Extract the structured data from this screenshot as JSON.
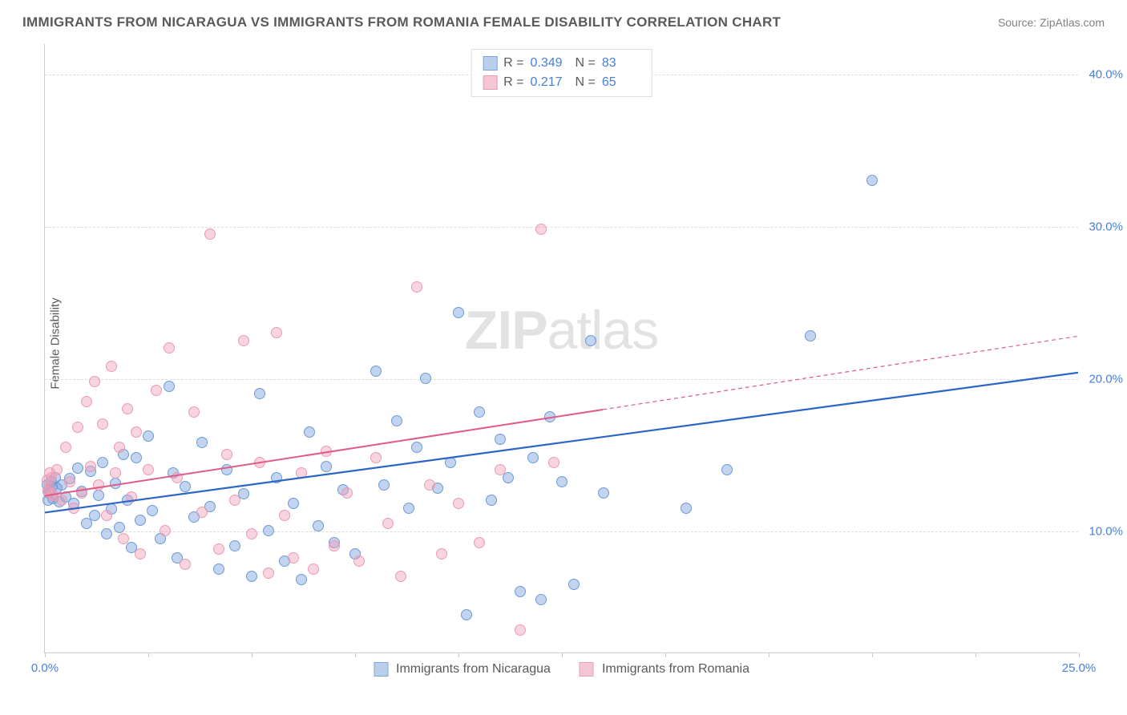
{
  "title": "IMMIGRANTS FROM NICARAGUA VS IMMIGRANTS FROM ROMANIA FEMALE DISABILITY CORRELATION CHART",
  "source": "Source: ZipAtlas.com",
  "ylabel": "Female Disability",
  "watermark_bold": "ZIP",
  "watermark_rest": "atlas",
  "chart": {
    "type": "scatter",
    "xlim": [
      0,
      25
    ],
    "ylim": [
      2,
      42
    ],
    "x_ticks": [
      0,
      2.5,
      5,
      7.5,
      10,
      12.5,
      15,
      17.5,
      20,
      22.5,
      25
    ],
    "x_tick_labels": {
      "0": "0.0%",
      "25": "25.0%"
    },
    "y_gridlines": [
      10,
      20,
      30,
      40
    ],
    "y_tick_labels": {
      "10": "10.0%",
      "20": "20.0%",
      "30": "30.0%",
      "40": "40.0%"
    },
    "background_color": "#ffffff",
    "grid_color": "#dddddd",
    "axis_color": "#cccccc",
    "marker_radius": 7,
    "marker_stroke_width": 1.3,
    "series": [
      {
        "name": "Immigrants from Nicaragua",
        "fill_color": "rgba(120,160,220,0.45)",
        "stroke_color": "#6d9ad6",
        "swatch_fill": "#b9cfec",
        "swatch_border": "#7ea4d8",
        "trend_color": "#2b66c4",
        "trend_width": 2.2,
        "trend_dash": "none",
        "trend_y_at_xmin": 11.2,
        "trend_y_at_xmax": 20.4,
        "stats": {
          "R_label": "R =",
          "R": "0.349",
          "N_label": "N =",
          "N": "83"
        },
        "points": [
          [
            0.1,
            12.5
          ],
          [
            0.15,
            13.2
          ],
          [
            0.2,
            12.1
          ],
          [
            0.25,
            13.5
          ],
          [
            0.3,
            12.8
          ],
          [
            0.35,
            11.9
          ],
          [
            0.4,
            13.0
          ],
          [
            0.5,
            12.2
          ],
          [
            0.6,
            13.4
          ],
          [
            0.7,
            11.8
          ],
          [
            0.8,
            14.1
          ],
          [
            0.9,
            12.6
          ],
          [
            1.0,
            10.5
          ],
          [
            1.1,
            13.9
          ],
          [
            1.2,
            11.0
          ],
          [
            1.3,
            12.3
          ],
          [
            1.4,
            14.5
          ],
          [
            1.5,
            9.8
          ],
          [
            1.6,
            11.4
          ],
          [
            1.7,
            13.1
          ],
          [
            1.8,
            10.2
          ],
          [
            1.9,
            15.0
          ],
          [
            2.0,
            12.0
          ],
          [
            2.1,
            8.9
          ],
          [
            2.2,
            14.8
          ],
          [
            2.3,
            10.7
          ],
          [
            2.5,
            16.2
          ],
          [
            2.6,
            11.3
          ],
          [
            2.8,
            9.5
          ],
          [
            3.0,
            19.5
          ],
          [
            3.1,
            13.8
          ],
          [
            3.2,
            8.2
          ],
          [
            3.4,
            12.9
          ],
          [
            3.6,
            10.9
          ],
          [
            3.8,
            15.8
          ],
          [
            4.0,
            11.6
          ],
          [
            4.2,
            7.5
          ],
          [
            4.4,
            14.0
          ],
          [
            4.6,
            9.0
          ],
          [
            4.8,
            12.4
          ],
          [
            5.0,
            7.0
          ],
          [
            5.2,
            19.0
          ],
          [
            5.4,
            10.0
          ],
          [
            5.6,
            13.5
          ],
          [
            5.8,
            8.0
          ],
          [
            6.0,
            11.8
          ],
          [
            6.2,
            6.8
          ],
          [
            6.4,
            16.5
          ],
          [
            6.6,
            10.3
          ],
          [
            6.8,
            14.2
          ],
          [
            7.0,
            9.2
          ],
          [
            7.2,
            12.7
          ],
          [
            7.5,
            8.5
          ],
          [
            8.0,
            20.5
          ],
          [
            8.2,
            13.0
          ],
          [
            8.5,
            17.2
          ],
          [
            8.8,
            11.5
          ],
          [
            9.0,
            15.5
          ],
          [
            9.2,
            20.0
          ],
          [
            9.5,
            12.8
          ],
          [
            9.8,
            14.5
          ],
          [
            10.0,
            24.3
          ],
          [
            10.2,
            4.5
          ],
          [
            10.5,
            17.8
          ],
          [
            10.8,
            12.0
          ],
          [
            11.0,
            16.0
          ],
          [
            11.2,
            13.5
          ],
          [
            11.5,
            6.0
          ],
          [
            11.8,
            14.8
          ],
          [
            12.0,
            5.5
          ],
          [
            12.2,
            17.5
          ],
          [
            12.5,
            13.2
          ],
          [
            12.8,
            6.5
          ],
          [
            13.2,
            22.5
          ],
          [
            13.5,
            12.5
          ],
          [
            15.5,
            11.5
          ],
          [
            16.5,
            14.0
          ],
          [
            18.5,
            22.8
          ],
          [
            20.0,
            33.0
          ],
          [
            0.05,
            13.0
          ],
          [
            0.08,
            12.0
          ],
          [
            0.12,
            12.7
          ],
          [
            0.18,
            12.9
          ]
        ]
      },
      {
        "name": "Immigrants from Romania",
        "fill_color": "rgba(240,160,185,0.45)",
        "stroke_color": "#e99bb2",
        "swatch_fill": "#f4c5d2",
        "swatch_border": "#eaa0b8",
        "trend_color": "#e05a8a",
        "trend_width": 2,
        "trend_dash_solid_end_x": 13.5,
        "trend_dash": "5,4",
        "trend_y_at_xmin": 12.3,
        "trend_y_at_xmax": 22.8,
        "stats": {
          "R_label": "R =",
          "R": "0.217",
          "N_label": "N =",
          "N": "65"
        },
        "points": [
          [
            0.1,
            12.8
          ],
          [
            0.15,
            13.5
          ],
          [
            0.2,
            12.3
          ],
          [
            0.3,
            14.0
          ],
          [
            0.4,
            12.0
          ],
          [
            0.5,
            15.5
          ],
          [
            0.6,
            13.2
          ],
          [
            0.7,
            11.5
          ],
          [
            0.8,
            16.8
          ],
          [
            0.9,
            12.5
          ],
          [
            1.0,
            18.5
          ],
          [
            1.1,
            14.2
          ],
          [
            1.2,
            19.8
          ],
          [
            1.3,
            13.0
          ],
          [
            1.4,
            17.0
          ],
          [
            1.5,
            11.0
          ],
          [
            1.6,
            20.8
          ],
          [
            1.7,
            13.8
          ],
          [
            1.8,
            15.5
          ],
          [
            1.9,
            9.5
          ],
          [
            2.0,
            18.0
          ],
          [
            2.1,
            12.2
          ],
          [
            2.2,
            16.5
          ],
          [
            2.3,
            8.5
          ],
          [
            2.5,
            14.0
          ],
          [
            2.7,
            19.2
          ],
          [
            2.9,
            10.0
          ],
          [
            3.0,
            22.0
          ],
          [
            3.2,
            13.5
          ],
          [
            3.4,
            7.8
          ],
          [
            3.6,
            17.8
          ],
          [
            3.8,
            11.2
          ],
          [
            4.0,
            29.5
          ],
          [
            4.2,
            8.8
          ],
          [
            4.4,
            15.0
          ],
          [
            4.6,
            12.0
          ],
          [
            4.8,
            22.5
          ],
          [
            5.0,
            9.8
          ],
          [
            5.2,
            14.5
          ],
          [
            5.4,
            7.2
          ],
          [
            5.6,
            23.0
          ],
          [
            5.8,
            11.0
          ],
          [
            6.0,
            8.2
          ],
          [
            6.2,
            13.8
          ],
          [
            6.5,
            7.5
          ],
          [
            6.8,
            15.2
          ],
          [
            7.0,
            9.0
          ],
          [
            7.3,
            12.5
          ],
          [
            7.6,
            8.0
          ],
          [
            8.0,
            14.8
          ],
          [
            8.3,
            10.5
          ],
          [
            8.6,
            7.0
          ],
          [
            9.0,
            26.0
          ],
          [
            9.3,
            13.0
          ],
          [
            9.6,
            8.5
          ],
          [
            10.0,
            11.8
          ],
          [
            10.5,
            9.2
          ],
          [
            11.0,
            14.0
          ],
          [
            11.5,
            3.5
          ],
          [
            12.0,
            29.8
          ],
          [
            12.3,
            14.5
          ],
          [
            0.05,
            13.3
          ],
          [
            0.08,
            12.6
          ],
          [
            0.12,
            13.8
          ],
          [
            0.18,
            12.4
          ]
        ]
      }
    ]
  }
}
